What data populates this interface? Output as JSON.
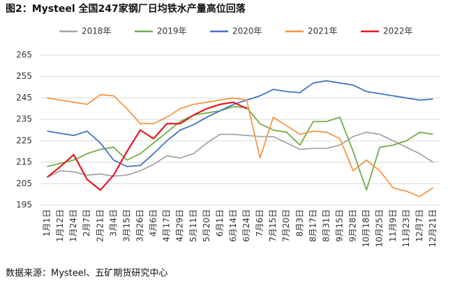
{
  "chart_data": {
    "type": "line",
    "title": "图2：Mysteel 全国247家钢厂日均铁水产量高位回落",
    "source": "数据来源：Mysteel、五矿期货研究中心",
    "categories": [
      "1月1日",
      "1月12日",
      "1月24日",
      "2月7日",
      "2月21日",
      "3月4日",
      "3月15日",
      "3月26日",
      "4月6日",
      "4月17日",
      "4月29日",
      "5月11日",
      "5月20日",
      "6月1日",
      "6月14日",
      "6月24日",
      "7月6日",
      "7月15日",
      "7月20日",
      "8月3日",
      "8月17日",
      "8月31日",
      "9月15日",
      "9月28日",
      "10月18日",
      "10月25日",
      "11月9日",
      "11月23日",
      "12月7日",
      "12月21日"
    ],
    "series": [
      {
        "name": "2018年",
        "color": "#a5a5a5",
        "values": [
          208,
          211,
          210.5,
          209,
          209.5,
          208.5,
          209,
          211,
          214,
          218,
          217,
          219,
          224,
          228,
          228,
          227.5,
          227,
          227,
          224,
          221,
          221.5,
          221.5,
          223,
          227,
          229,
          228,
          225,
          222,
          219,
          215
        ]
      },
      {
        "name": "2019年",
        "color": "#70ad47",
        "values": [
          213,
          214.5,
          216,
          219,
          221,
          222,
          216,
          219,
          224,
          229,
          234,
          237,
          238,
          239,
          241,
          240.5,
          233,
          230,
          229,
          223,
          234,
          234,
          236,
          220,
          202,
          222,
          223,
          225,
          229,
          228
        ]
      },
      {
        "name": "2020年",
        "color": "#4472c4",
        "values": [
          229.5,
          228.5,
          227.5,
          229.5,
          224,
          216,
          213,
          213.5,
          219,
          225,
          230,
          232.5,
          236,
          239,
          242,
          244,
          246,
          249,
          248,
          247.5,
          252,
          253,
          252,
          251,
          248,
          247,
          246,
          245,
          244,
          244.5
        ]
      },
      {
        "name": "2021年",
        "color": "#f79646",
        "values": [
          245,
          244,
          243,
          242,
          246.5,
          246,
          240,
          233,
          233,
          236,
          240,
          242,
          243,
          244,
          245,
          244,
          217,
          236,
          232,
          228,
          229.5,
          229,
          226,
          211,
          216,
          211,
          203,
          201.5,
          199,
          203
        ]
      },
      {
        "name": "2022年",
        "color": "#e8171c",
        "values": [
          208,
          213,
          218.5,
          207,
          202,
          209,
          220,
          230,
          226,
          233,
          233,
          237,
          240,
          242,
          243,
          240,
          null,
          null,
          null,
          null,
          null,
          null,
          null,
          null,
          null,
          null,
          null,
          null,
          null,
          null
        ]
      }
    ],
    "ylim": [
      195,
      265
    ],
    "yticks": [
      195,
      205,
      215,
      225,
      235,
      245,
      255,
      265
    ],
    "grid": true,
    "legend": "top"
  }
}
